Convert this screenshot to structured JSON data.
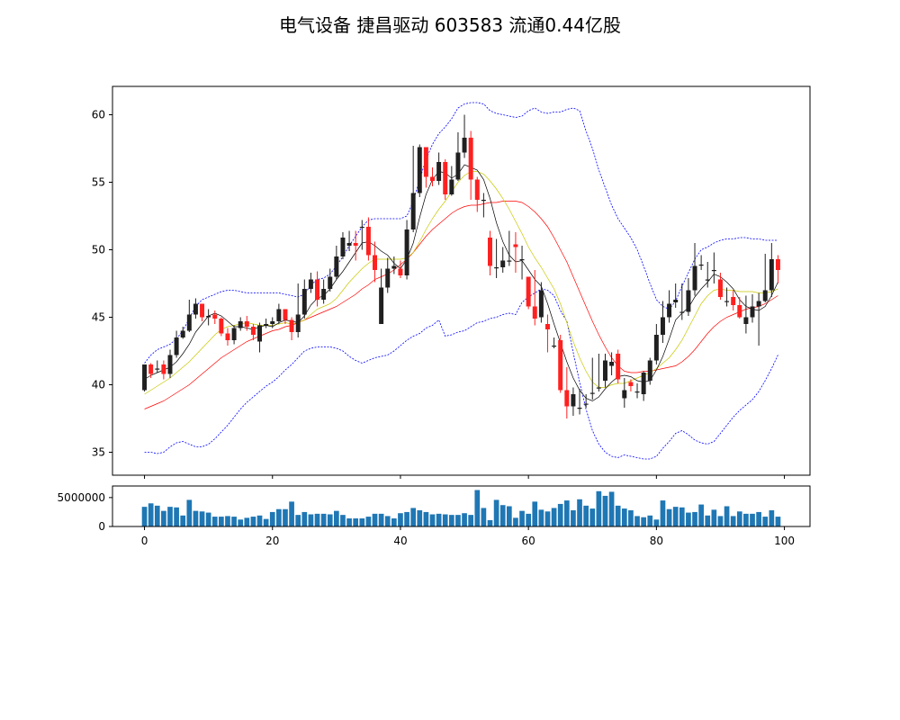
{
  "title": "电气设备 捷昌驱动 603583 流通0.44亿股",
  "colors": {
    "up": "#ff2020",
    "down": "#202020",
    "ma_short": "#000000",
    "ma_mid": "#c8c800",
    "ma_long": "#ff0000",
    "boll": "#0000ff",
    "volume": "#1f77b4"
  },
  "chart_data": [
    {
      "type": "candlestick",
      "title": "",
      "xlabel": "",
      "ylabel": "",
      "xlim": [
        -5,
        104
      ],
      "ylim": [
        33.3,
        62.1
      ],
      "y_ticks": [
        35,
        40,
        45,
        50,
        55,
        60
      ],
      "close": [
        41.5,
        40.8,
        41.2,
        40.8,
        42.2,
        43.5,
        44.0,
        45.2,
        46.0,
        45.0,
        45.1,
        44.9,
        43.8,
        43.3,
        44.2,
        44.7,
        44.3,
        43.7,
        44.4,
        44.5,
        44.7,
        45.6,
        44.8,
        43.9,
        45.2,
        47.1,
        47.8,
        46.3,
        47.1,
        48.0,
        49.5,
        50.9,
        50.5,
        50.3,
        51.7,
        49.6,
        48.5,
        47.2,
        48.6,
        48.8,
        48.1,
        51.5,
        54.2,
        57.6,
        55.4,
        55.1,
        56.5,
        54.1,
        55.2,
        57.2,
        58.3,
        55.2,
        53.7,
        53.7,
        48.8,
        48.7,
        49.2,
        49.2,
        50.2,
        49.3,
        45.8,
        44.9,
        47.0,
        44.1,
        42.9,
        39.6,
        38.4,
        39.3,
        38.3,
        38.6,
        39.4,
        39.8,
        41.8,
        41.7,
        40.4,
        39.6,
        39.9,
        39.5,
        40.9,
        41.8,
        43.7,
        45.0,
        46.0,
        46.3,
        45.4,
        47.0,
        48.8,
        48.9,
        47.8,
        48.5,
        46.5,
        46.2,
        45.9,
        45.0,
        45.0,
        45.8,
        46.2,
        47.0,
        49.3,
        48.5
      ],
      "open": [
        39.6,
        41.5,
        41.2,
        41.5,
        40.8,
        42.2,
        43.5,
        44.0,
        45.2,
        46.0,
        45.0,
        45.2,
        44.9,
        43.8,
        43.3,
        44.2,
        44.7,
        44.3,
        43.2,
        44.4,
        44.5,
        44.7,
        45.6,
        44.8,
        43.9,
        45.2,
        47.1,
        47.8,
        46.3,
        47.1,
        48.0,
        49.5,
        50.3,
        50.5,
        51.7,
        51.7,
        49.6,
        44.5,
        47.2,
        48.6,
        48.6,
        48.1,
        51.5,
        54.2,
        57.6,
        55.4,
        55.1,
        56.5,
        54.1,
        55.2,
        57.2,
        58.3,
        55.2,
        53.7,
        50.9,
        48.7,
        48.7,
        49.2,
        50.4,
        49.3,
        48.0,
        45.8,
        45.0,
        44.5,
        42.9,
        43.3,
        39.6,
        38.4,
        38.3,
        38.6,
        39.4,
        39.8,
        40.3,
        41.4,
        42.3,
        39.0,
        40.2,
        39.5,
        39.3,
        40.3,
        41.8,
        43.7,
        45.0,
        46.1,
        45.4,
        45.4,
        47.0,
        48.9,
        47.8,
        48.5,
        47.8,
        46.2,
        46.5,
        45.9,
        44.5,
        45.0,
        45.8,
        46.2,
        47.0,
        49.3
      ],
      "high": [
        41.5,
        41.6,
        41.8,
        41.8,
        42.6,
        44.0,
        44.3,
        46.3,
        46.4,
        46.0,
        45.6,
        45.5,
        45.0,
        44.2,
        44.4,
        45.0,
        45.1,
        44.5,
        44.6,
        44.9,
        45.0,
        46.0,
        45.6,
        45.0,
        47.5,
        47.8,
        48.3,
        48.4,
        47.8,
        48.6,
        50.3,
        51.3,
        51.4,
        51.4,
        52.2,
        52.4,
        50.6,
        48.6,
        49.4,
        49.5,
        49.2,
        52.2,
        57.7,
        57.8,
        57.6,
        56.1,
        57.2,
        56.7,
        56.2,
        58.7,
        60.0,
        58.8,
        55.4,
        54.2,
        51.4,
        50.8,
        50.2,
        51.4,
        51.3,
        50.3,
        48.0,
        48.5,
        47.6,
        45.2,
        43.5,
        43.7,
        41.3,
        39.8,
        39.7,
        39.3,
        42.0,
        42.3,
        42.3,
        42.4,
        42.6,
        40.5,
        40.4,
        40.1,
        41.0,
        42.0,
        44.5,
        46.2,
        47.0,
        47.5,
        47.5,
        47.9,
        50.5,
        49.6,
        49.1,
        49.8,
        48.3,
        47.2,
        47.0,
        46.5,
        46.6,
        46.7,
        46.8,
        49.7,
        50.5,
        49.6
      ],
      "low": [
        39.5,
        40.5,
        40.9,
        40.4,
        40.5,
        42.0,
        43.4,
        43.9,
        44.9,
        44.7,
        44.4,
        44.5,
        43.6,
        42.9,
        43.0,
        44.0,
        44.0,
        43.3,
        42.4,
        44.2,
        44.2,
        44.5,
        44.5,
        43.3,
        43.5,
        44.9,
        46.8,
        45.8,
        46.0,
        46.9,
        47.8,
        49.3,
        49.9,
        49.2,
        50.0,
        49.2,
        47.6,
        44.5,
        46.8,
        48.2,
        47.9,
        47.8,
        51.3,
        53.9,
        54.6,
        54.7,
        54.8,
        53.7,
        54.0,
        55.1,
        56.8,
        53.7,
        52.8,
        52.4,
        48.1,
        47.9,
        48.3,
        48.8,
        48.3,
        47.8,
        45.6,
        44.4,
        44.6,
        42.4,
        42.7,
        39.4,
        37.5,
        37.7,
        37.8,
        38.3,
        38.9,
        39.5,
        39.8,
        40.7,
        40.1,
        38.3,
        39.5,
        39.0,
        38.8,
        40.0,
        41.5,
        43.1,
        44.6,
        45.7,
        44.8,
        45.1,
        46.6,
        48.5,
        47.2,
        47.5,
        46.3,
        45.8,
        45.5,
        44.9,
        43.8,
        44.6,
        42.9,
        46.1,
        46.5,
        47.5
      ],
      "ma_short": [
        40.4,
        40.7,
        40.9,
        41.1,
        41.3,
        41.7,
        42.3,
        43.0,
        43.9,
        44.5,
        45.1,
        45.3,
        45.1,
        44.7,
        44.3,
        44.3,
        44.2,
        44.1,
        44.3,
        44.4,
        44.3,
        44.6,
        44.8,
        44.7,
        44.6,
        45.1,
        45.9,
        46.4,
        46.6,
        47.1,
        47.8,
        48.4,
        49.1,
        49.8,
        50.5,
        50.6,
        50.3,
        49.9,
        49.6,
        49.0,
        48.6,
        49.3,
        50.5,
        52.4,
        54.1,
        55.2,
        55.8,
        55.7,
        55.3,
        55.6,
        56.3,
        56.1,
        55.9,
        55.2,
        53.8,
        52.0,
        50.6,
        49.6,
        49.1,
        49.2,
        48.5,
        47.8,
        47.3,
        46.0,
        44.5,
        43.1,
        41.7,
        40.5,
        39.6,
        39.0,
        38.8,
        39.1,
        39.7,
        40.2,
        40.6,
        40.7,
        40.6,
        40.3,
        40.2,
        40.3,
        41.1,
        42.1,
        43.4,
        44.8,
        45.3,
        45.7,
        46.5,
        47.1,
        47.6,
        48.2,
        48.0,
        47.6,
        47.1,
        46.3,
        45.8,
        45.6,
        45.5,
        45.8,
        46.6,
        47.6
      ],
      "ma_mid": [
        39.3,
        39.6,
        39.9,
        40.2,
        40.5,
        40.9,
        41.3,
        41.7,
        42.2,
        42.7,
        43.2,
        43.7,
        44.1,
        44.3,
        44.4,
        44.5,
        44.6,
        44.5,
        44.4,
        44.4,
        44.4,
        44.5,
        44.6,
        44.5,
        44.6,
        44.8,
        45.2,
        45.6,
        45.8,
        46.0,
        46.4,
        47.0,
        47.6,
        48.1,
        48.6,
        49.0,
        49.3,
        49.3,
        49.3,
        49.3,
        49.3,
        49.4,
        49.8,
        50.6,
        51.5,
        52.3,
        53.0,
        53.6,
        54.3,
        55.0,
        55.5,
        55.8,
        55.8,
        55.6,
        55.1,
        54.5,
        53.8,
        53.0,
        52.1,
        51.2,
        50.2,
        49.4,
        48.7,
        47.9,
        47.1,
        46.0,
        44.6,
        43.2,
        42.0,
        41.0,
        40.2,
        39.8,
        39.8,
        40.0,
        40.1,
        40.1,
        40.3,
        40.5,
        40.7,
        40.9,
        41.2,
        41.6,
        42.0,
        42.6,
        43.3,
        44.2,
        45.1,
        46.0,
        46.6,
        47.0,
        47.1,
        47.0,
        47.0,
        46.9,
        46.9,
        46.9,
        46.8,
        46.8,
        46.9,
        47.1
      ],
      "ma_long": [
        38.2,
        38.4,
        38.6,
        38.8,
        39.1,
        39.4,
        39.7,
        40.0,
        40.4,
        40.8,
        41.2,
        41.6,
        42.0,
        42.3,
        42.6,
        42.9,
        43.2,
        43.4,
        43.6,
        43.8,
        44.0,
        44.1,
        44.3,
        44.4,
        44.6,
        44.8,
        45.0,
        45.2,
        45.4,
        45.6,
        45.8,
        46.1,
        46.4,
        46.7,
        47.1,
        47.4,
        47.8,
        48.0,
        48.2,
        48.5,
        48.9,
        49.3,
        49.8,
        50.4,
        51.0,
        51.5,
        51.9,
        52.3,
        52.7,
        53.0,
        53.2,
        53.3,
        53.3,
        53.4,
        53.5,
        53.5,
        53.6,
        53.6,
        53.6,
        53.5,
        53.2,
        52.8,
        52.3,
        51.7,
        50.9,
        50.0,
        49.1,
        48.0,
        46.9,
        45.8,
        44.7,
        43.7,
        42.8,
        42.0,
        41.4,
        41.0,
        40.9,
        40.9,
        41.0,
        41.0,
        41.1,
        41.2,
        41.3,
        41.4,
        41.7,
        42.1,
        42.6,
        43.2,
        43.8,
        44.3,
        44.7,
        45.0,
        45.2,
        45.4,
        45.6,
        45.7,
        45.8,
        46.0,
        46.3,
        46.6
      ],
      "boll_upper": [
        41.6,
        42.2,
        42.6,
        42.8,
        43.0,
        43.4,
        44.0,
        44.9,
        45.8,
        46.3,
        46.5,
        46.7,
        46.9,
        47.0,
        47.0,
        46.9,
        46.8,
        46.8,
        46.8,
        46.8,
        46.8,
        46.8,
        46.7,
        46.6,
        46.5,
        46.7,
        47.4,
        47.8,
        47.9,
        48.2,
        48.8,
        49.5,
        50.3,
        51.0,
        51.7,
        52.2,
        52.3,
        52.3,
        52.3,
        52.3,
        52.3,
        52.5,
        53.6,
        55.2,
        56.7,
        57.8,
        58.6,
        59.1,
        59.7,
        60.5,
        60.8,
        60.9,
        60.9,
        60.8,
        60.3,
        60.1,
        60.0,
        59.9,
        59.8,
        59.9,
        60.3,
        60.5,
        60.2,
        60.1,
        60.2,
        60.2,
        60.4,
        60.5,
        60.3,
        58.8,
        57.5,
        55.9,
        54.6,
        53.3,
        52.3,
        51.6,
        50.9,
        50.0,
        48.8,
        47.5,
        46.3,
        45.8,
        45.6,
        46.2,
        47.3,
        48.3,
        49.3,
        50.0,
        50.2,
        50.5,
        50.7,
        50.8,
        50.8,
        50.9,
        50.9,
        50.8,
        50.8,
        50.7,
        50.7,
        50.7
      ],
      "boll_lower": [
        35.0,
        35.0,
        34.9,
        35.0,
        35.4,
        35.7,
        35.8,
        35.6,
        35.4,
        35.4,
        35.6,
        36.0,
        36.5,
        37.0,
        37.6,
        38.2,
        38.7,
        39.1,
        39.5,
        39.9,
        40.2,
        40.6,
        41.1,
        41.5,
        42.0,
        42.5,
        42.7,
        42.8,
        42.8,
        42.8,
        42.7,
        42.5,
        42.1,
        41.8,
        41.6,
        41.8,
        42.0,
        42.1,
        42.2,
        42.5,
        42.9,
        43.3,
        43.6,
        43.8,
        44.2,
        44.4,
        44.8,
        43.6,
        43.7,
        43.9,
        44.0,
        44.3,
        44.6,
        44.7,
        44.9,
        45.0,
        45.2,
        45.3,
        45.2,
        46.1,
        46.5,
        46.8,
        47.1,
        47.0,
        46.6,
        45.5,
        44.7,
        42.4,
        40.2,
        38.2,
        36.6,
        35.6,
        35.0,
        34.7,
        34.6,
        34.8,
        34.7,
        34.6,
        34.5,
        34.5,
        34.7,
        35.3,
        35.8,
        36.4,
        36.6,
        36.3,
        35.9,
        35.7,
        35.6,
        35.8,
        36.4,
        37.0,
        37.6,
        38.1,
        38.5,
        38.9,
        39.5,
        40.3,
        41.2,
        42.2
      ]
    },
    {
      "type": "bar",
      "title": "",
      "xlabel": "",
      "ylabel": "",
      "xlim": [
        -5,
        104
      ],
      "ylim": [
        0,
        7000000
      ],
      "y_ticks": [
        0,
        5000000
      ],
      "x_ticks": [
        0,
        20,
        40,
        60,
        80,
        100
      ],
      "values": [
        3400000,
        4000000,
        3600000,
        2700000,
        3400000,
        3300000,
        1900000,
        4600000,
        2700000,
        2600000,
        2400000,
        1700000,
        1700000,
        1800000,
        1700000,
        1200000,
        1500000,
        1700000,
        1900000,
        1300000,
        2500000,
        3000000,
        3000000,
        4300000,
        2000000,
        2500000,
        2100000,
        2200000,
        2200000,
        2100000,
        2700000,
        2000000,
        1400000,
        1400000,
        1400000,
        1700000,
        2200000,
        2200000,
        1800000,
        1400000,
        2300000,
        2500000,
        3200000,
        2800000,
        2500000,
        2100000,
        2200000,
        2100000,
        2000000,
        2000000,
        2300000,
        2000000,
        6300000,
        3200000,
        1100000,
        4600000,
        3700000,
        3500000,
        1500000,
        2700000,
        2200000,
        4300000,
        2900000,
        2600000,
        3200000,
        3900000,
        4500000,
        2800000,
        4700000,
        3600000,
        3100000,
        6100000,
        5300000,
        6000000,
        3600000,
        3100000,
        2800000,
        1800000,
        1600000,
        1900000,
        1200000,
        4500000,
        3000000,
        3400000,
        3300000,
        2400000,
        2500000,
        3800000,
        1900000,
        2900000,
        1800000,
        3500000,
        1800000,
        2600000,
        2200000,
        2200000,
        2500000,
        1700000,
        2800000,
        1700000
      ]
    }
  ]
}
